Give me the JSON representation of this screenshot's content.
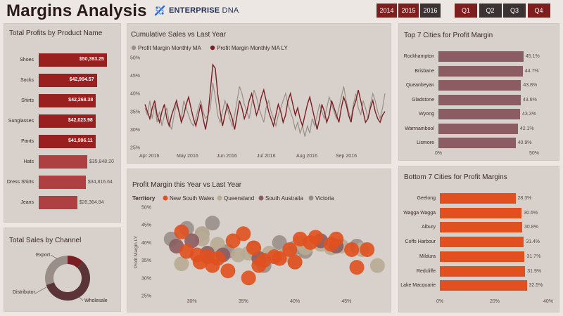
{
  "header": {
    "title": "Margins Analysis",
    "logo_bold": "ENTERPRISE",
    "logo_light": " DNA",
    "years": [
      {
        "label": "2014",
        "selected": false
      },
      {
        "label": "2015",
        "selected": false
      },
      {
        "label": "2016",
        "selected": true
      }
    ],
    "quarters": [
      {
        "label": "Q1",
        "selected": false
      },
      {
        "label": "Q2",
        "selected": true
      },
      {
        "label": "Q3",
        "selected": true
      },
      {
        "label": "Q4",
        "selected": false
      }
    ]
  },
  "colors": {
    "dark_red": "#8b2121",
    "maroon": "#7a1e24",
    "grey": "#9a8f88",
    "mauve": "#8b5c61",
    "orange": "#e1501e",
    "tan": "#b8ab95",
    "dark_grey": "#3b3333"
  },
  "charts": {
    "profits_by_product": {
      "chart_data": {
        "type": "bar",
        "title": "Total Profits by Product Name",
        "categories": [
          "Shoes",
          "Socks",
          "Shirts",
          "Sunglasses",
          "Pants",
          "Hats",
          "Dress Shirts",
          "Jeans"
        ],
        "values": [
          50393.25,
          42994.57,
          42268.38,
          42023.98,
          41996.11,
          35848.2,
          34816.64,
          28364.84
        ],
        "value_labels": [
          "$50,393.25",
          "$42,994.57",
          "$42,268.38",
          "$42,023.98",
          "$41,996.11",
          "$35,848.20",
          "$34,816.64",
          "$28,364.84"
        ],
        "highlighted": [
          true,
          true,
          true,
          true,
          true,
          false,
          false,
          false
        ]
      }
    },
    "sales_by_channel": {
      "chart_data": {
        "type": "pie",
        "title": "Total Sales by Channel",
        "categories": [
          "Wholesale",
          "Distributor",
          "Export"
        ],
        "values": [
          58,
          30,
          12
        ]
      }
    },
    "cumulative_sales": {
      "chart_data": {
        "type": "line",
        "title": "Cumulative Sales vs Last Year",
        "x_ticks": [
          "Apr 2016",
          "May 2016",
          "Jun 2016",
          "Jul 2016",
          "Aug 2016",
          "Sep 2016"
        ],
        "y_ticks": [
          "50%",
          "45%",
          "40%",
          "35%",
          "30%",
          "25%"
        ],
        "ylim": [
          25,
          50
        ],
        "series": [
          {
            "name": "Profit Margin Monthly MA",
            "values": [
              36,
              34,
              38,
              33,
              37,
              32,
              35,
              31,
              34,
              36,
              32,
              30,
              34,
              37,
              35,
              33,
              38,
              36,
              34,
              32,
              31,
              33,
              36,
              38,
              35,
              33,
              34,
              36,
              43,
              39,
              34,
              32,
              35,
              38,
              36,
              33,
              31,
              34,
              38,
              42,
              40,
              37,
              35,
              33,
              37,
              41,
              39,
              36,
              34,
              32,
              36,
              38,
              35,
              33,
              31,
              34,
              36,
              38,
              40,
              37,
              35,
              33,
              30,
              32,
              29,
              31,
              28,
              31,
              29,
              33,
              31,
              34,
              37,
              35,
              33,
              36,
              39,
              37,
              35,
              33,
              36,
              39,
              42,
              38,
              35,
              33,
              37,
              40,
              36,
              34,
              38,
              36,
              33,
              37,
              40,
              38,
              35,
              33,
              36,
              40
            ]
          },
          {
            "name": "Profit Margin Monthly MA LY",
            "values": [
              37,
              35,
              33,
              36,
              38,
              34,
              32,
              35,
              37,
              33,
              31,
              34,
              36,
              38,
              35,
              32,
              34,
              37,
              39,
              36,
              33,
              31,
              34,
              37,
              33,
              30,
              34,
              41,
              48,
              47,
              40,
              35,
              31,
              34,
              37,
              35,
              33,
              30,
              34,
              38,
              36,
              33,
              35,
              38,
              40,
              37,
              34,
              36,
              39,
              41,
              38,
              35,
              33,
              31,
              34,
              37,
              35,
              32,
              34,
              38,
              40,
              37,
              34,
              36,
              33,
              31,
              34,
              37,
              39,
              36,
              33,
              30,
              33,
              37,
              35,
              32,
              34,
              38,
              36,
              34,
              32,
              36,
              39,
              37,
              34,
              32,
              36,
              38,
              41,
              38,
              35,
              32,
              33,
              36,
              38,
              35,
              33,
              32,
              34,
              35
            ]
          }
        ]
      }
    },
    "profit_margin_scatter": {
      "chart_data": {
        "type": "scatter",
        "title": "Profit Margin this Year vs Last Year",
        "legend_title": "Territory",
        "ylabel": "Profit Margin LY",
        "x_ticks": [
          "30%",
          "35%",
          "40%",
          "45%"
        ],
        "y_ticks": [
          "50%",
          "45%",
          "40%",
          "35%",
          "30%",
          "25%"
        ],
        "xlim": [
          26,
          49
        ],
        "ylim": [
          25,
          50
        ],
        "series": [
          {
            "name": "New South Wales",
            "points": [
              [
                29.5,
                37.5
              ],
              [
                30.5,
                36.5
              ],
              [
                31.5,
                36.0
              ],
              [
                32.5,
                35.5
              ],
              [
                34.0,
                40.5
              ],
              [
                35.0,
                42.5
              ],
              [
                36.0,
                38.5
              ],
              [
                37.0,
                35.0
              ],
              [
                38.0,
                36.0
              ],
              [
                39.5,
                38.0
              ],
              [
                40.5,
                41.0
              ],
              [
                41.5,
                40.0
              ],
              [
                42.0,
                41.5
              ],
              [
                43.5,
                39.5
              ],
              [
                44.0,
                41.0
              ],
              [
                45.5,
                38.0
              ],
              [
                46.0,
                33.0
              ],
              [
                47.0,
                38.0
              ],
              [
                29.0,
                43.0
              ],
              [
                36.5,
                33.5
              ],
              [
                38.5,
                35.5
              ],
              [
                40.0,
                34.5
              ],
              [
                33.5,
                32.0
              ],
              [
                35.5,
                30.0
              ],
              [
                32.0,
                33.5
              ],
              [
                30.8,
                34.5
              ]
            ]
          },
          {
            "name": "Queensland",
            "points": [
              [
                29.0,
                34.0
              ],
              [
                31.0,
                41.0
              ],
              [
                32.5,
                39.5
              ],
              [
                34.5,
                36.5
              ],
              [
                36.0,
                37.5
              ],
              [
                38.0,
                36.0
              ],
              [
                39.0,
                36.5
              ],
              [
                40.0,
                34.5
              ],
              [
                41.0,
                38.5
              ],
              [
                42.5,
                39.5
              ],
              [
                43.5,
                38.5
              ],
              [
                44.5,
                39.0
              ],
              [
                46.5,
                38.0
              ],
              [
                35.5,
                37.0
              ],
              [
                37.5,
                37.0
              ],
              [
                40.5,
                40.0
              ],
              [
                48.0,
                33.5
              ],
              [
                31.0,
                42.5
              ]
            ]
          },
          {
            "name": "South Australia",
            "points": [
              [
                28.5,
                39.0
              ],
              [
                30.0,
                40.5
              ],
              [
                31.5,
                37.0
              ],
              [
                33.0,
                36.5
              ],
              [
                36.5,
                35.5
              ],
              [
                42.5,
                40.5
              ],
              [
                44.0,
                39.0
              ]
            ]
          },
          {
            "name": "Victoria",
            "points": [
              [
                28.0,
                41.0
              ],
              [
                29.5,
                44.0
              ],
              [
                31.0,
                42.5
              ],
              [
                32.0,
                45.5
              ],
              [
                33.5,
                37.5
              ],
              [
                36.0,
                38.5
              ],
              [
                37.0,
                33.5
              ],
              [
                38.5,
                40.0
              ],
              [
                40.0,
                38.5
              ],
              [
                41.0,
                37.5
              ],
              [
                46.0,
                39.0
              ]
            ]
          }
        ]
      }
    },
    "top_cities": {
      "chart_data": {
        "type": "bar",
        "title": "Top 7 Cities for Profit Margin",
        "categories": [
          "Rockhampton",
          "Brisbane",
          "Queanbeyan",
          "Gladstone",
          "Wyong",
          "Warrnambool",
          "Lismore"
        ],
        "values": [
          45.1,
          44.7,
          43.8,
          43.6,
          43.3,
          42.1,
          40.9
        ],
        "value_labels": [
          "45.1%",
          "44.7%",
          "43.8%",
          "43.6%",
          "43.3%",
          "42.1%",
          "40.9%"
        ],
        "x_ticks": [
          "0%",
          "50%"
        ],
        "xlim": [
          0,
          50
        ]
      }
    },
    "bottom_cities": {
      "chart_data": {
        "type": "bar",
        "title": "Bottom 7 Cities for Profit Margins",
        "categories": [
          "Geelong",
          "Wagga Wagga",
          "Albury",
          "Coffs Harbour",
          "Mildura",
          "Redcliffe",
          "Lake Macquarie"
        ],
        "values": [
          28.3,
          30.6,
          30.8,
          31.4,
          31.7,
          31.9,
          32.5
        ],
        "value_labels": [
          "28.3%",
          "30.6%",
          "30.8%",
          "31.4%",
          "31.7%",
          "31.9%",
          "32.5%"
        ],
        "x_ticks": [
          "0%",
          "20%",
          "40%"
        ],
        "xlim": [
          0,
          40
        ]
      }
    }
  }
}
